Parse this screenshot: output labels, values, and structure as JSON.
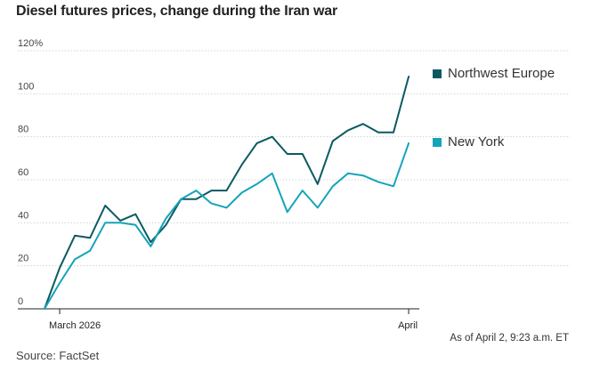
{
  "chart_data": {
    "type": "line",
    "title": "Diesel futures prices, change during the Iran war",
    "xlabel": "",
    "ylabel": "",
    "ylim": [
      0,
      120
    ],
    "yticks": [
      0,
      20,
      40,
      60,
      80,
      100,
      120
    ],
    "ytick_labels": [
      "0",
      "20",
      "40",
      "60",
      "80",
      "100",
      "120%"
    ],
    "x": [
      0,
      1,
      2,
      3,
      4,
      5,
      6,
      7,
      8,
      9,
      10,
      11,
      12,
      13,
      14,
      15,
      16,
      17,
      18,
      19,
      20,
      21,
      22,
      23,
      24
    ],
    "xlim": [
      0,
      24.7
    ],
    "xticks": [
      {
        "x": 1,
        "label": "March 2026"
      },
      {
        "x": 24,
        "label": "April"
      }
    ],
    "series": [
      {
        "name": "Northwest Europe",
        "color": "#0b5a63",
        "values": [
          0,
          19,
          34,
          33,
          48,
          41,
          44,
          31,
          39,
          51,
          51,
          55,
          55,
          67,
          77,
          80,
          72,
          72,
          58,
          78,
          83,
          86,
          82,
          82,
          108
        ]
      },
      {
        "name": "New York",
        "color": "#15a4ba",
        "values": [
          0,
          12,
          23,
          27,
          40,
          40,
          39,
          29,
          42,
          51,
          55,
          49,
          47,
          54,
          58,
          63,
          45,
          55,
          47,
          57,
          63,
          62,
          59,
          57,
          77
        ]
      }
    ],
    "legend": "right"
  },
  "footer": {
    "as_of": "As of April 2, 9:23 a.m. ET",
    "source": "Source: FactSet"
  }
}
